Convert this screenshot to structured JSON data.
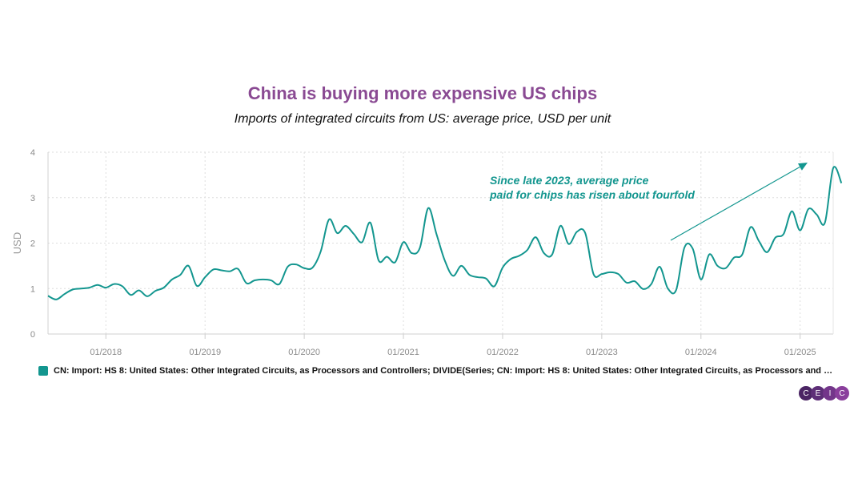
{
  "colors": {
    "title": "#8a4a93",
    "series": "#13968f",
    "annotation": "#13968f",
    "axis_text": "#8a8a8a",
    "grid": "#dedede",
    "logo": [
      "#4b2564",
      "#5e2f78",
      "#73368a",
      "#8a3f9c"
    ]
  },
  "chart_data": {
    "type": "line",
    "title": "China is buying more expensive US chips",
    "subtitle": "Imports of integrated circuits from US: average price, USD per unit",
    "ylabel": "USD",
    "xlabel": "",
    "ylim": [
      0,
      4
    ],
    "yticks": [
      0,
      1,
      2,
      3,
      4
    ],
    "xlim": [
      "2017-06",
      "2025-05"
    ],
    "xticks": [
      {
        "label": "01/2018",
        "t": 2018.0
      },
      {
        "label": "01/2019",
        "t": 2019.0
      },
      {
        "label": "01/2020",
        "t": 2020.0
      },
      {
        "label": "01/2021",
        "t": 2021.0
      },
      {
        "label": "01/2022",
        "t": 2022.0
      },
      {
        "label": "01/2023",
        "t": 2023.0
      },
      {
        "label": "01/2024",
        "t": 2024.0
      },
      {
        "label": "01/2025",
        "t": 2025.0
      }
    ],
    "grid": true,
    "legend_position": "bottom-left",
    "series": [
      {
        "name": "CN: Import: HS 8: United States: Other Integrated Circuits, as Processors and Controllers; DIVIDE(Series; CN: Import: HS 8: United States: Other Integrated Circuits, as Processors and Cont…",
        "start": "2017-06",
        "values": [
          0.84,
          0.76,
          0.88,
          0.98,
          1.0,
          1.02,
          1.08,
          1.02,
          1.1,
          1.05,
          0.86,
          0.96,
          0.83,
          0.95,
          1.02,
          1.2,
          1.3,
          1.5,
          1.06,
          1.25,
          1.42,
          1.4,
          1.38,
          1.43,
          1.12,
          1.18,
          1.2,
          1.18,
          1.1,
          1.48,
          1.53,
          1.45,
          1.46,
          1.82,
          2.52,
          2.22,
          2.38,
          2.2,
          2.02,
          2.45,
          1.62,
          1.7,
          1.58,
          2.02,
          1.78,
          1.9,
          2.77,
          2.2,
          1.62,
          1.28,
          1.5,
          1.3,
          1.25,
          1.22,
          1.05,
          1.46,
          1.65,
          1.72,
          1.85,
          2.13,
          1.78,
          1.75,
          2.38,
          1.98,
          2.25,
          2.22,
          1.32,
          1.32,
          1.36,
          1.32,
          1.13,
          1.16,
          0.99,
          1.1,
          1.48,
          1.0,
          0.97,
          1.9,
          1.88,
          1.2,
          1.75,
          1.5,
          1.45,
          1.68,
          1.75,
          2.35,
          2.05,
          1.8,
          2.12,
          2.2,
          2.7,
          2.28,
          2.75,
          2.63,
          2.45,
          3.65,
          3.32
        ]
      }
    ],
    "annotations": [
      {
        "text_lines": [
          "Since late 2023, average price",
          "paid for chips has risen about fourfold"
        ],
        "arrow": true
      }
    ]
  },
  "logo": {
    "letters": [
      "C",
      "E",
      "I",
      "C"
    ]
  }
}
